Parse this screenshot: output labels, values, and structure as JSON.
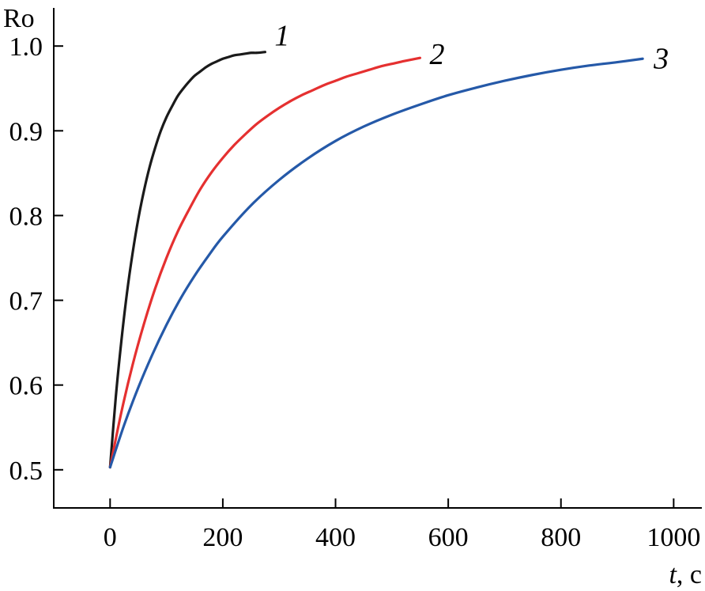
{
  "chart_data": {
    "type": "line",
    "title": "",
    "ylabel": "Ro",
    "xlabel_var": "t",
    "xlabel_unit": ", c",
    "xlim": [
      -100,
      1050
    ],
    "ylim": [
      0.455,
      1.045
    ],
    "xticks": [
      0,
      200,
      400,
      600,
      800,
      1000
    ],
    "yticks": [
      0.5,
      0.6,
      0.7,
      0.8,
      0.9,
      1.0
    ],
    "yticklabels": [
      "0.5",
      "0.6",
      "0.7",
      "0.8",
      "0.9",
      "1.0"
    ],
    "grid": false,
    "series": [
      {
        "name": "1",
        "color": "#1a1a1a",
        "x": [
          0,
          10,
          20,
          30,
          40,
          50,
          60,
          70,
          80,
          90,
          100,
          110,
          120,
          130,
          140,
          150,
          160,
          170,
          180,
          190,
          200,
          210,
          220,
          230,
          240,
          250,
          260,
          275
        ],
        "y": [
          0.503,
          0.585,
          0.652,
          0.709,
          0.756,
          0.796,
          0.829,
          0.857,
          0.88,
          0.9,
          0.916,
          0.929,
          0.941,
          0.95,
          0.958,
          0.965,
          0.97,
          0.975,
          0.979,
          0.982,
          0.985,
          0.987,
          0.989,
          0.99,
          0.991,
          0.992,
          0.992,
          0.993
        ]
      },
      {
        "name": "2",
        "color": "#e53030",
        "x": [
          0,
          20,
          40,
          60,
          80,
          100,
          120,
          140,
          160,
          180,
          200,
          220,
          240,
          260,
          280,
          300,
          320,
          340,
          360,
          380,
          400,
          420,
          440,
          460,
          480,
          500,
          520,
          550
        ],
        "y": [
          0.503,
          0.568,
          0.624,
          0.672,
          0.714,
          0.75,
          0.781,
          0.807,
          0.831,
          0.851,
          0.868,
          0.883,
          0.896,
          0.908,
          0.918,
          0.927,
          0.935,
          0.942,
          0.948,
          0.954,
          0.959,
          0.964,
          0.968,
          0.972,
          0.976,
          0.979,
          0.982,
          0.986
        ]
      },
      {
        "name": "3",
        "color": "#2559a8",
        "x": [
          0,
          25,
          50,
          75,
          100,
          125,
          150,
          175,
          200,
          250,
          300,
          350,
          400,
          450,
          500,
          550,
          600,
          650,
          700,
          750,
          800,
          850,
          900,
          945
        ],
        "y": [
          0.503,
          0.553,
          0.597,
          0.636,
          0.671,
          0.702,
          0.729,
          0.753,
          0.775,
          0.812,
          0.842,
          0.867,
          0.888,
          0.905,
          0.919,
          0.931,
          0.942,
          0.951,
          0.959,
          0.966,
          0.972,
          0.977,
          0.981,
          0.985
        ]
      }
    ]
  }
}
